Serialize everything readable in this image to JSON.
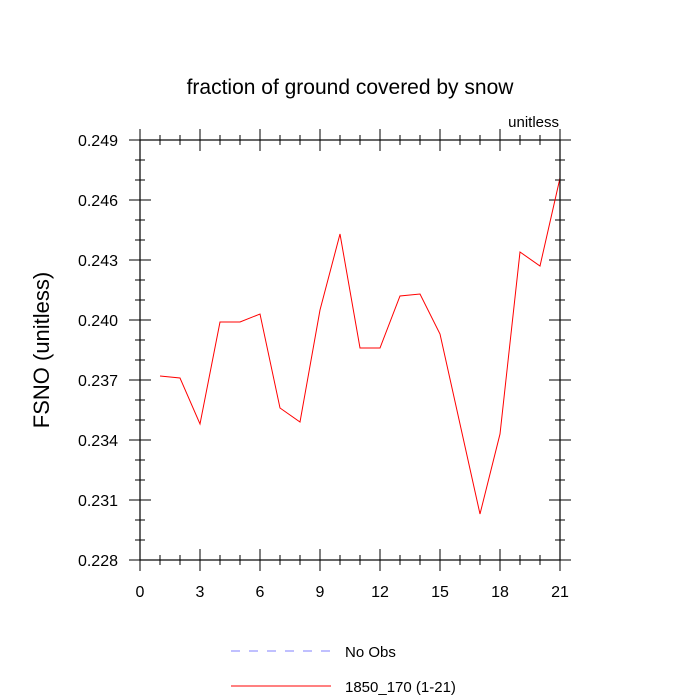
{
  "chart_data": {
    "type": "line",
    "title": "fraction of ground covered by snow",
    "subtitle": "unitless",
    "ylabel": "FSNO  (unitless)",
    "xlabel": "",
    "xlim": [
      0,
      21
    ],
    "ylim": [
      0.228,
      0.249
    ],
    "x_ticks": [
      0,
      3,
      6,
      9,
      12,
      15,
      18,
      21
    ],
    "x_tick_labels": [
      "0",
      "3",
      "6",
      "9",
      "12",
      "15",
      "18",
      "21"
    ],
    "y_ticks": [
      0.228,
      0.231,
      0.234,
      0.237,
      0.24,
      0.243,
      0.246,
      0.249
    ],
    "y_tick_labels": [
      "0.228",
      "0.231",
      "0.234",
      "0.237",
      "0.240",
      "0.243",
      "0.246",
      "0.249"
    ],
    "x_minor_step": 1,
    "y_minor_step": 0.001,
    "grid": false,
    "legend_position": "bottom-center",
    "legend": [
      {
        "label": "No Obs",
        "color": "#8080ff",
        "style": "dashed"
      },
      {
        "label": "1850_170 (1-21)",
        "color": "#ff0000",
        "style": "solid"
      }
    ],
    "series": [
      {
        "name": "1850_170 (1-21)",
        "color": "#ff0000",
        "x": [
          1,
          2,
          3,
          4,
          5,
          6,
          7,
          8,
          9,
          10,
          11,
          12,
          13,
          14,
          15,
          16,
          17,
          18,
          19,
          20,
          21
        ],
        "values": [
          0.2372,
          0.2371,
          0.2348,
          0.2399,
          0.2399,
          0.2403,
          0.2356,
          0.2349,
          0.2405,
          0.2443,
          0.2386,
          0.2386,
          0.2412,
          0.2413,
          0.2393,
          0.2348,
          0.2303,
          0.2343,
          0.2434,
          0.2427,
          0.2471
        ]
      }
    ]
  }
}
